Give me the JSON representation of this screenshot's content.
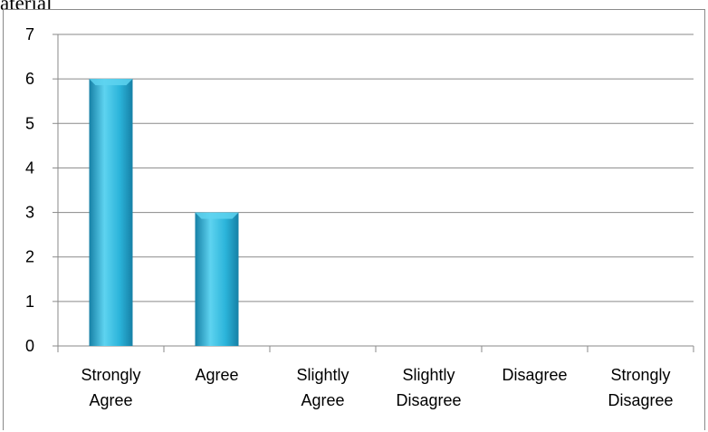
{
  "page_fragment_text": "aterial",
  "colors": {
    "bar_light": "#5ed3f0",
    "bar_mid": "#2bb4da",
    "bar_dark": "#1680a6",
    "grid": "#8a8a8a"
  },
  "chart_data": {
    "type": "bar",
    "title": "",
    "xlabel": "",
    "ylabel": "",
    "ylim": [
      0,
      7
    ],
    "yticks": [
      "0",
      "1",
      "2",
      "3",
      "4",
      "5",
      "6",
      "7"
    ],
    "categories": [
      [
        "Strongly",
        "Agree"
      ],
      [
        "Agree"
      ],
      [
        "Slightly",
        "Agree"
      ],
      [
        "Slightly",
        "Disagree"
      ],
      [
        "Disagree"
      ],
      [
        "Strongly",
        "Disagree"
      ]
    ],
    "values": [
      6,
      3,
      0,
      0,
      0,
      0
    ],
    "grid": true,
    "legend": "none"
  }
}
